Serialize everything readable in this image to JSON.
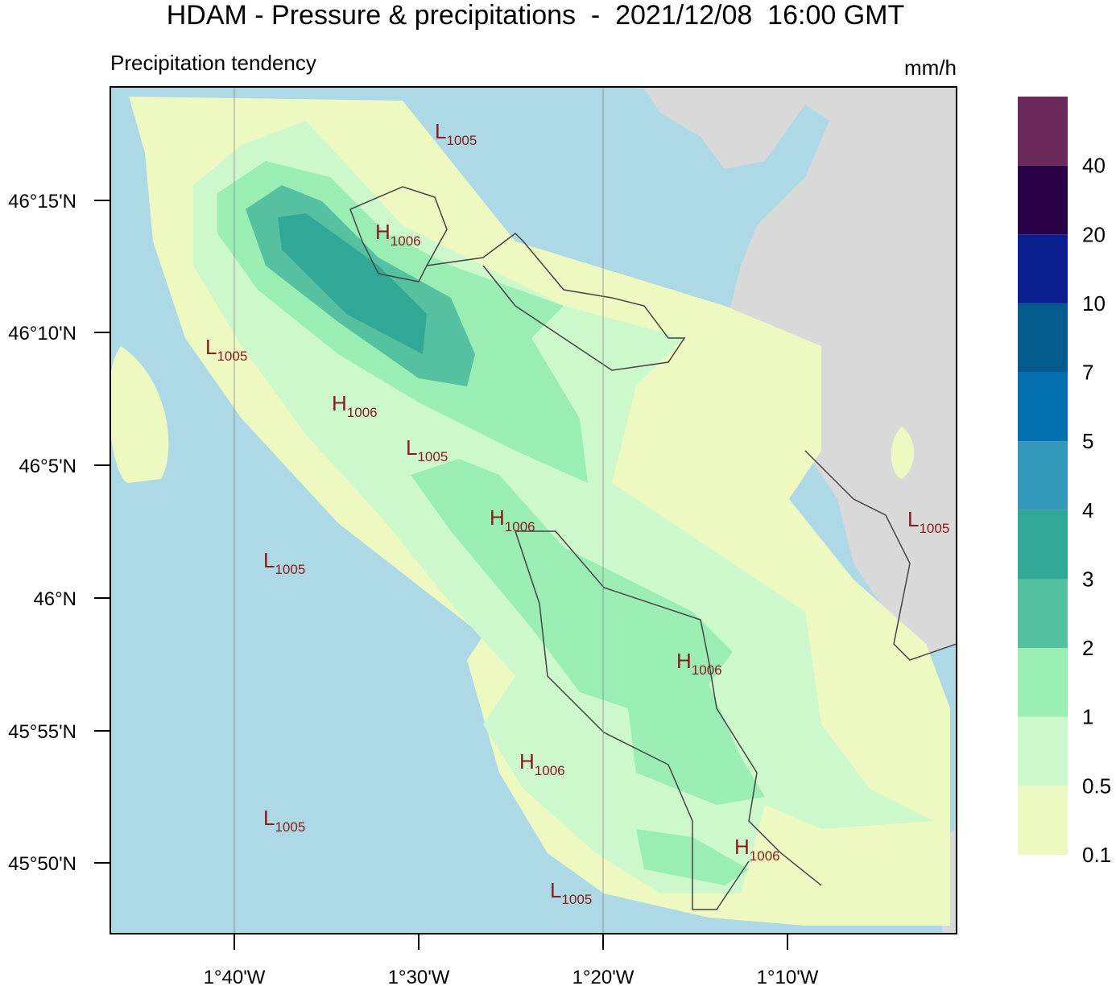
{
  "header": {
    "title": "HDAM - Pressure & precipitations  -  2021/12/08  16:00 GMT",
    "subtitle": "Precipitation tendency",
    "unit": "mm/h"
  },
  "axes": {
    "lat_labels": [
      "46°15'N",
      "46°10'N",
      "46°5'N",
      "46°N",
      "45°55'N",
      "45°50'N"
    ],
    "lon_labels": [
      "1°40'W",
      "1°30'W",
      "1°20'W",
      "1°10'W"
    ]
  },
  "pressure_labels": [
    {
      "letter": "L",
      "value": 1005
    },
    {
      "letter": "H",
      "value": 1006
    },
    {
      "letter": "L",
      "value": 1005
    },
    {
      "letter": "H",
      "value": 1006
    },
    {
      "letter": "L",
      "value": 1005
    },
    {
      "letter": "H",
      "value": 1006
    },
    {
      "letter": "L",
      "value": 1005
    },
    {
      "letter": "L",
      "value": 1005
    },
    {
      "letter": "H",
      "value": 1006
    },
    {
      "letter": "H",
      "value": 1006
    },
    {
      "letter": "L",
      "value": 1005
    },
    {
      "letter": "H",
      "value": 1006
    },
    {
      "letter": "L",
      "value": 1005
    }
  ],
  "colorbar": {
    "labels": [
      0.1,
      0.5,
      1,
      2,
      3,
      4,
      5,
      7,
      10,
      20,
      40
    ],
    "colors": [
      "#eef9c2",
      "#ccf8cc",
      "#9aeeb4",
      "#55c1a0",
      "#31a897",
      "#3398b9",
      "#0570b0",
      "#045a8d",
      "#0c1f8e",
      "#2a0046",
      "#6b2a5b"
    ]
  }
}
